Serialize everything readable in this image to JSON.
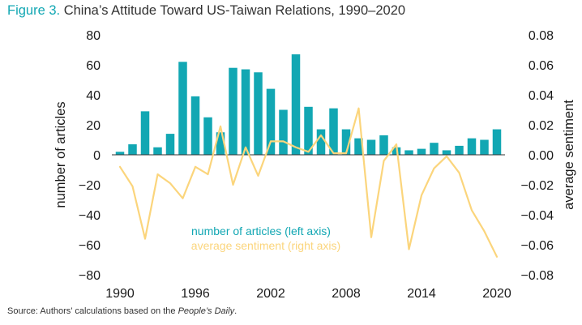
{
  "title": {
    "figure_label": "Figure 3.",
    "text": "China’s Attitude Toward US-Taiwan Relations, 1990–2020"
  },
  "source": {
    "prefix": "Source: Authors’ calculations based on the ",
    "publication": "People’s Daily",
    "suffix": "."
  },
  "colors": {
    "bars": "#12a7b3",
    "line": "#fbd57c",
    "zero_line": "#333333"
  },
  "chart_data": {
    "type": "bar",
    "x": [
      1990,
      1991,
      1992,
      1993,
      1994,
      1995,
      1996,
      1997,
      1998,
      1999,
      2000,
      2001,
      2002,
      2003,
      2004,
      2005,
      2006,
      2007,
      2008,
      2009,
      2010,
      2011,
      2012,
      2013,
      2014,
      2015,
      2016,
      2017,
      2018,
      2019,
      2020
    ],
    "series": [
      {
        "name": "number of articles (left axis)",
        "axis": "left",
        "type": "bar",
        "values": [
          2,
          7,
          29,
          5,
          14,
          62,
          39,
          25,
          15,
          58,
          57,
          55,
          44,
          30,
          67,
          32,
          17,
          31,
          17,
          11,
          10,
          13,
          5,
          3,
          4,
          8,
          3,
          6,
          11,
          10,
          17
        ]
      },
      {
        "name": "average sentiment (right axis)",
        "axis": "right",
        "type": "line",
        "values": [
          -0.008,
          -0.021,
          -0.056,
          -0.013,
          -0.019,
          -0.029,
          -0.008,
          -0.013,
          0.019,
          -0.02,
          0.005,
          -0.014,
          0.009,
          0.009,
          0.005,
          0.002,
          0.013,
          0.001,
          0.001,
          0.031,
          -0.055,
          -0.004,
          0.007,
          -0.063,
          -0.027,
          -0.009,
          -0.001,
          -0.012,
          -0.037,
          -0.051,
          -0.068
        ]
      }
    ],
    "ylabel": "number of articles",
    "y2label": "average sentiment",
    "ylim": [
      -80,
      80
    ],
    "y2lim": [
      -0.08,
      0.08
    ],
    "yticks": [
      "80",
      "60",
      "40",
      "20",
      "0",
      "−20",
      "−40",
      "−60",
      "−80"
    ],
    "y2ticks": [
      "0.08",
      "0.06",
      "0.04",
      "0.02",
      "0.00",
      "−0.02",
      "−0.04",
      "−0.06",
      "−0.08"
    ],
    "xticks": [
      "1990",
      "1996",
      "2002",
      "2008",
      "2014",
      "2020"
    ],
    "grid": false,
    "legend_position": "bottom-center"
  }
}
